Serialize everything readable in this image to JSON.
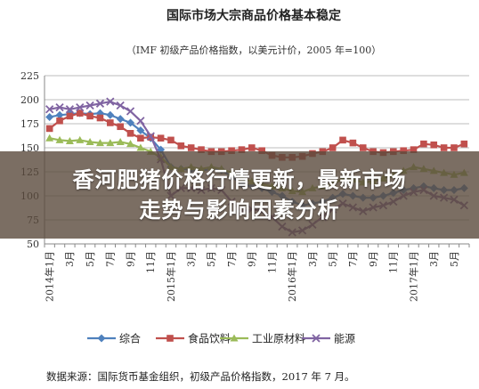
{
  "chart_data": {
    "type": "line",
    "title": "国际市场大宗商品价格基本稳定",
    "subtitle": "（IMF 初级产品价格指数，以美元计价，2005 年=100）",
    "source": "数据来源：国际货币基金组织，初级产品价格指数，2017 年 7 月。",
    "ylim": [
      50,
      225
    ],
    "yticks": [
      "50",
      "75",
      "100",
      "125",
      "150",
      "175",
      "200",
      "225"
    ],
    "grid": true,
    "legend_position": "bottom",
    "x_tick_labels": [
      "2014年1月",
      "3月",
      "5月",
      "7月",
      "9月",
      "11月",
      "2015年1月",
      "3月",
      "5月",
      "7月",
      "9月",
      "11月",
      "2016年1月",
      "3月",
      "5月",
      "7月",
      "9月",
      "11月",
      "2017年1月",
      "3月",
      "5月"
    ],
    "x": [
      "2014-01",
      "2014-02",
      "2014-03",
      "2014-04",
      "2014-05",
      "2014-06",
      "2014-07",
      "2014-08",
      "2014-09",
      "2014-10",
      "2014-11",
      "2014-12",
      "2015-01",
      "2015-02",
      "2015-03",
      "2015-04",
      "2015-05",
      "2015-06",
      "2015-07",
      "2015-08",
      "2015-09",
      "2015-10",
      "2015-11",
      "2015-12",
      "2016-01",
      "2016-02",
      "2016-03",
      "2016-04",
      "2016-05",
      "2016-06",
      "2016-07",
      "2016-08",
      "2016-09",
      "2016-10",
      "2016-11",
      "2016-12",
      "2017-01",
      "2017-02",
      "2017-03",
      "2017-04",
      "2017-05",
      "2017-06"
    ],
    "series": [
      {
        "name": "综合",
        "color": "#4f81bd",
        "marker": "diamond",
        "values": [
          182,
          184,
          185,
          186,
          185,
          186,
          184,
          180,
          176,
          168,
          160,
          148,
          130,
          128,
          127,
          126,
          128,
          127,
          120,
          112,
          110,
          108,
          104,
          100,
          94,
          90,
          92,
          94,
          98,
          102,
          100,
          98,
          98,
          100,
          103,
          106,
          108,
          110,
          108,
          106,
          106,
          108
        ]
      },
      {
        "name": "食品饮料",
        "color": "#c0504d",
        "marker": "square",
        "values": [
          170,
          178,
          183,
          186,
          183,
          181,
          176,
          172,
          165,
          160,
          161,
          160,
          158,
          152,
          150,
          148,
          146,
          146,
          147,
          148,
          150,
          147,
          142,
          140,
          140,
          141,
          144,
          146,
          150,
          158,
          155,
          150,
          146,
          145,
          146,
          147,
          148,
          154,
          153,
          150,
          150,
          154
        ]
      },
      {
        "name": "工业原材料",
        "color": "#9bbb59",
        "marker": "triangle",
        "values": [
          160,
          158,
          157,
          158,
          156,
          155,
          155,
          156,
          154,
          150,
          146,
          140,
          130,
          128,
          130,
          128,
          130,
          128,
          124,
          118,
          115,
          112,
          110,
          108,
          105,
          104,
          108,
          110,
          112,
          118,
          117,
          114,
          115,
          118,
          122,
          126,
          130,
          128,
          126,
          124,
          122,
          124
        ]
      },
      {
        "name": "能源",
        "color": "#8064a2",
        "marker": "x",
        "values": [
          190,
          192,
          190,
          192,
          194,
          196,
          198,
          194,
          188,
          178,
          162,
          138,
          100,
          108,
          108,
          106,
          108,
          106,
          94,
          84,
          86,
          84,
          78,
          68,
          62,
          64,
          70,
          78,
          86,
          92,
          88,
          84,
          88,
          90,
          94,
          100,
          104,
          106,
          100,
          98,
          96,
          90
        ]
      }
    ]
  }
}
